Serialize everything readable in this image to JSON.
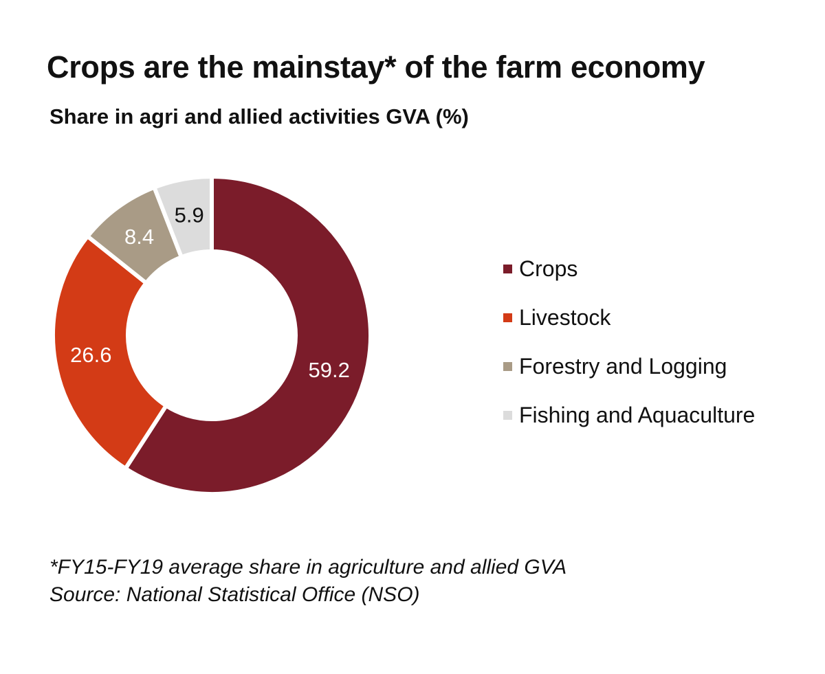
{
  "chart_data": {
    "type": "pie",
    "title": "Crops are the mainstay* of the farm economy",
    "subtitle": "Share in agri and allied activities GVA (%)",
    "donut": true,
    "legend_position": "right",
    "slices": [
      {
        "label": "Crops",
        "value": 59.2,
        "display": "59.2",
        "color": "#7b1c2a",
        "text_color": "#ffffff"
      },
      {
        "label": "Livestock",
        "value": 26.6,
        "display": "26.6",
        "color": "#d33b16",
        "text_color": "#ffffff"
      },
      {
        "label": "Forestry and Logging",
        "value": 8.4,
        "display": "8.4",
        "color": "#a99b86",
        "text_color": "#ffffff"
      },
      {
        "label": "Fishing and Aquaculture",
        "value": 5.9,
        "display": "5.9",
        "color": "#dcdcdc",
        "text_color": "#111111"
      }
    ]
  },
  "footnote": {
    "note": "*FY15-FY19 average share in agriculture and allied GVA",
    "source": "Source: National Statistical Office (NSO)"
  }
}
